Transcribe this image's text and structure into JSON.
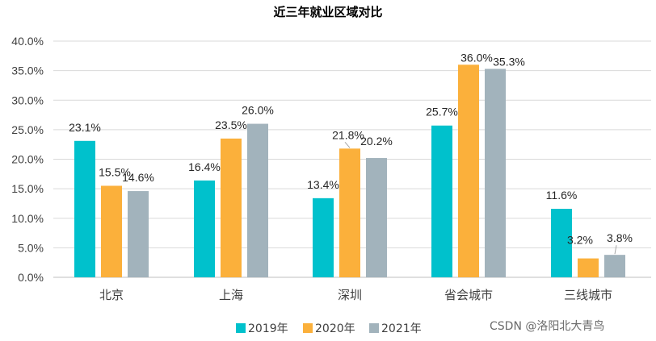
{
  "chart_data": {
    "type": "bar",
    "title": "近三年就业区域对比",
    "categories": [
      "北京",
      "上海",
      "深圳",
      "省会城市",
      "三线城市"
    ],
    "series": [
      {
        "name": "2019年",
        "color": "#00c1cc",
        "values": [
          23.1,
          16.4,
          13.4,
          25.7,
          11.6
        ],
        "labels": [
          "23.1%",
          "16.4%",
          "13.4%",
          "25.7%",
          "11.6%"
        ]
      },
      {
        "name": "2020年",
        "color": "#fbb03b",
        "values": [
          15.5,
          23.5,
          21.8,
          36.0,
          3.2
        ],
        "labels": [
          "15.5%",
          "23.5%",
          "21.8%",
          "36.0%",
          "3.2%"
        ]
      },
      {
        "name": "2021年",
        "color": "#a2b3bc",
        "values": [
          14.6,
          26.0,
          20.2,
          35.3,
          3.8
        ],
        "labels": [
          "14.6%",
          "26.0%",
          "20.2%",
          "35.3%",
          "3.8%"
        ]
      }
    ],
    "yticks": [
      0,
      5,
      10,
      15,
      20,
      25,
      30,
      35,
      40
    ],
    "ytick_labels": [
      "0.0%",
      "5.0%",
      "10.0%",
      "15.0%",
      "20.0%",
      "25.0%",
      "30.0%",
      "35.0%",
      "40.0%"
    ],
    "ylim": [
      0,
      40
    ],
    "xlabel": "",
    "ylabel": "",
    "grid": true,
    "legend_position": "bottom-center"
  },
  "watermark": "CSDN @洛阳北大青鸟"
}
